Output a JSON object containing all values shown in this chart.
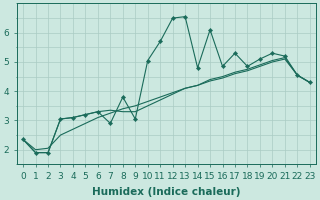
{
  "xlabel": "Humidex (Indice chaleur)",
  "background_color": "#cce8e0",
  "line_color": "#1a6b5a",
  "grid_color": "#aaccc4",
  "xlim": [
    -0.5,
    23.5
  ],
  "ylim": [
    1.5,
    7.0
  ],
  "xticks": [
    0,
    1,
    2,
    3,
    4,
    5,
    6,
    7,
    8,
    9,
    10,
    11,
    12,
    13,
    14,
    15,
    16,
    17,
    18,
    19,
    20,
    21,
    22,
    23
  ],
  "yticks": [
    2,
    3,
    4,
    5,
    6
  ],
  "line1_x": [
    0,
    1,
    2,
    3,
    4,
    5,
    6,
    7,
    8,
    9,
    10,
    11,
    12,
    13,
    14,
    15,
    16,
    17,
    18,
    19,
    20,
    21,
    22,
    23
  ],
  "line1_y": [
    2.35,
    1.9,
    1.9,
    3.05,
    3.1,
    3.2,
    3.3,
    2.9,
    3.8,
    3.05,
    5.05,
    5.7,
    6.5,
    6.55,
    4.8,
    6.1,
    4.85,
    5.3,
    4.85,
    5.1,
    5.3,
    5.2,
    4.55,
    4.3
  ],
  "line2_x": [
    0,
    1,
    2,
    3,
    4,
    5,
    6,
    7,
    8,
    9,
    10,
    11,
    12,
    13,
    14,
    15,
    16,
    17,
    18,
    19,
    20,
    21,
    22,
    23
  ],
  "line2_y": [
    2.35,
    1.9,
    1.9,
    3.05,
    3.1,
    3.2,
    3.3,
    3.35,
    3.3,
    3.3,
    3.5,
    3.7,
    3.9,
    4.1,
    4.2,
    4.4,
    4.5,
    4.65,
    4.75,
    4.9,
    5.05,
    5.15,
    4.55,
    4.3
  ],
  "line3_x": [
    0,
    1,
    2,
    3,
    4,
    5,
    6,
    7,
    8,
    9,
    10,
    11,
    12,
    13,
    14,
    15,
    16,
    17,
    18,
    19,
    20,
    21,
    22,
    23
  ],
  "line3_y": [
    2.35,
    2.0,
    2.05,
    2.5,
    2.7,
    2.9,
    3.1,
    3.25,
    3.4,
    3.5,
    3.65,
    3.8,
    3.95,
    4.1,
    4.2,
    4.35,
    4.45,
    4.6,
    4.7,
    4.85,
    5.0,
    5.1,
    4.55,
    4.3
  ],
  "tick_fontsize": 6.5,
  "label_fontsize": 7.5
}
